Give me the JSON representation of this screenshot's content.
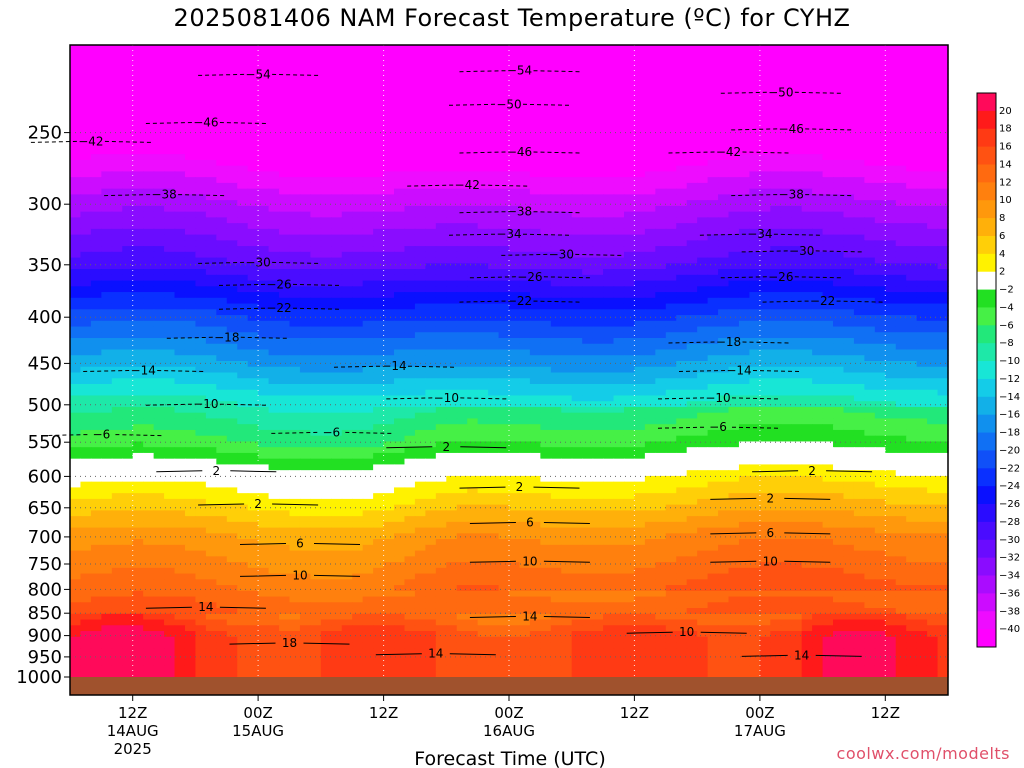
{
  "chart_data": {
    "type": "heatmap",
    "title": "2025081406 NAM Forecast Temperature (ºC) for CYHZ",
    "xlabel": "Forecast Time (UTC)",
    "ylabel": "",
    "credit": "coolwx.com/modelts",
    "y_axis": {
      "scale": "log",
      "range": [
        1000,
        200
      ],
      "ticks": [
        250,
        300,
        350,
        400,
        450,
        500,
        550,
        600,
        650,
        700,
        750,
        800,
        850,
        900,
        950,
        1000
      ]
    },
    "x_axis": {
      "range_hours": [
        0,
        84
      ],
      "ticks": [
        {
          "hour": 6,
          "label": "12Z",
          "date": "14AUG",
          "year": "2025"
        },
        {
          "hour": 18,
          "label": "00Z",
          "date": "15AUG",
          "year": ""
        },
        {
          "hour": 30,
          "label": "12Z",
          "date": "",
          "year": ""
        },
        {
          "hour": 42,
          "label": "00Z",
          "date": "16AUG",
          "year": ""
        },
        {
          "hour": 54,
          "label": "12Z",
          "date": "",
          "year": ""
        },
        {
          "hour": 66,
          "label": "00Z",
          "date": "17AUG",
          "year": ""
        },
        {
          "hour": 78,
          "label": "12Z",
          "date": "",
          "year": ""
        }
      ]
    },
    "colorbar": {
      "labels": [
        20,
        18,
        16,
        14,
        12,
        10,
        8,
        6,
        4,
        2,
        -2,
        -4,
        -6,
        -8,
        -10,
        -12,
        -14,
        -16,
        -18,
        -20,
        -22,
        -24,
        -26,
        -28,
        -30,
        -32,
        -34,
        -36,
        -38,
        -40
      ],
      "colors": [
        "#ff0a5a",
        "#ff1a1a",
        "#ff3a14",
        "#ff5212",
        "#ff6a10",
        "#ff800e",
        "#ff980c",
        "#ffb00a",
        "#ffcf08",
        "#fff200",
        "#ffffff",
        "#22e022",
        "#46f046",
        "#22e87a",
        "#1ee8a8",
        "#18e6d6",
        "#14cce8",
        "#12b0e8",
        "#1090ee",
        "#1070f4",
        "#1050f8",
        "#0a30ff",
        "#0a10ff",
        "#2a0cff",
        "#4a0cff",
        "#6a0cff",
        "#8a0cff",
        "#aa0cff",
        "#cc0cff",
        "#ee0cff",
        "#ff00ff"
      ]
    },
    "temperature_by_pressure": {
      "pressures": [
        200,
        250,
        300,
        350,
        400,
        450,
        500,
        550,
        600,
        650,
        700,
        750,
        800,
        850,
        900,
        950,
        1000
      ],
      "temps_at_start": [
        -58,
        -44,
        -36,
        -30,
        -22,
        -16,
        -10,
        -6,
        0,
        4,
        8,
        10,
        12,
        14,
        18,
        18,
        18
      ]
    },
    "contour_labels": [
      {
        "value": -54,
        "hour": 18,
        "p": 215
      },
      {
        "value": -54,
        "hour": 43,
        "p": 213
      },
      {
        "value": -50,
        "hour": 42,
        "p": 232
      },
      {
        "value": -50,
        "hour": 68,
        "p": 225
      },
      {
        "value": -46,
        "hour": 13,
        "p": 243
      },
      {
        "value": -46,
        "hour": 43,
        "p": 262
      },
      {
        "value": -46,
        "hour": 69,
        "p": 247
      },
      {
        "value": -42,
        "hour": 2,
        "p": 255
      },
      {
        "value": -42,
        "hour": 38,
        "p": 285
      },
      {
        "value": -42,
        "hour": 63,
        "p": 262
      },
      {
        "value": -38,
        "hour": 9,
        "p": 292
      },
      {
        "value": -38,
        "hour": 43,
        "p": 305
      },
      {
        "value": -38,
        "hour": 69,
        "p": 292
      },
      {
        "value": -34,
        "hour": 42,
        "p": 323
      },
      {
        "value": -34,
        "hour": 66,
        "p": 323
      },
      {
        "value": -30,
        "hour": 18,
        "p": 347
      },
      {
        "value": -30,
        "hour": 47,
        "p": 340
      },
      {
        "value": -30,
        "hour": 70,
        "p": 337
      },
      {
        "value": -26,
        "hour": 20,
        "p": 367
      },
      {
        "value": -26,
        "hour": 44,
        "p": 360
      },
      {
        "value": -26,
        "hour": 68,
        "p": 360
      },
      {
        "value": -22,
        "hour": 20,
        "p": 390
      },
      {
        "value": -22,
        "hour": 43,
        "p": 383
      },
      {
        "value": -22,
        "hour": 72,
        "p": 383
      },
      {
        "value": -18,
        "hour": 15,
        "p": 420
      },
      {
        "value": -18,
        "hour": 63,
        "p": 425
      },
      {
        "value": -14,
        "hour": 7,
        "p": 457
      },
      {
        "value": -14,
        "hour": 31,
        "p": 452
      },
      {
        "value": -14,
        "hour": 64,
        "p": 457
      },
      {
        "value": -10,
        "hour": 13,
        "p": 498
      },
      {
        "value": -10,
        "hour": 36,
        "p": 490
      },
      {
        "value": -10,
        "hour": 62,
        "p": 490
      },
      {
        "value": -6,
        "hour": 3,
        "p": 538
      },
      {
        "value": -6,
        "hour": 25,
        "p": 535
      },
      {
        "value": -6,
        "hour": 62,
        "p": 528
      },
      {
        "value": 2,
        "hour": 14,
        "p": 590
      },
      {
        "value": 2,
        "hour": 36,
        "p": 555
      },
      {
        "value": 2,
        "hour": 43,
        "p": 615
      },
      {
        "value": 2,
        "hour": 71,
        "p": 590
      },
      {
        "value": 2,
        "hour": 18,
        "p": 642
      },
      {
        "value": 2,
        "hour": 67,
        "p": 633
      },
      {
        "value": 6,
        "hour": 22,
        "p": 710
      },
      {
        "value": 6,
        "hour": 44,
        "p": 673
      },
      {
        "value": 6,
        "hour": 67,
        "p": 691
      },
      {
        "value": 10,
        "hour": 22,
        "p": 770
      },
      {
        "value": 10,
        "hour": 44,
        "p": 743
      },
      {
        "value": 10,
        "hour": 67,
        "p": 743
      },
      {
        "value": 10,
        "hour": 59,
        "p": 890
      },
      {
        "value": 14,
        "hour": 13,
        "p": 835
      },
      {
        "value": 14,
        "hour": 44,
        "p": 855
      },
      {
        "value": 14,
        "hour": 35,
        "p": 940
      },
      {
        "value": 14,
        "hour": 70,
        "p": 944
      },
      {
        "value": 18,
        "hour": 21,
        "p": 915
      }
    ]
  }
}
